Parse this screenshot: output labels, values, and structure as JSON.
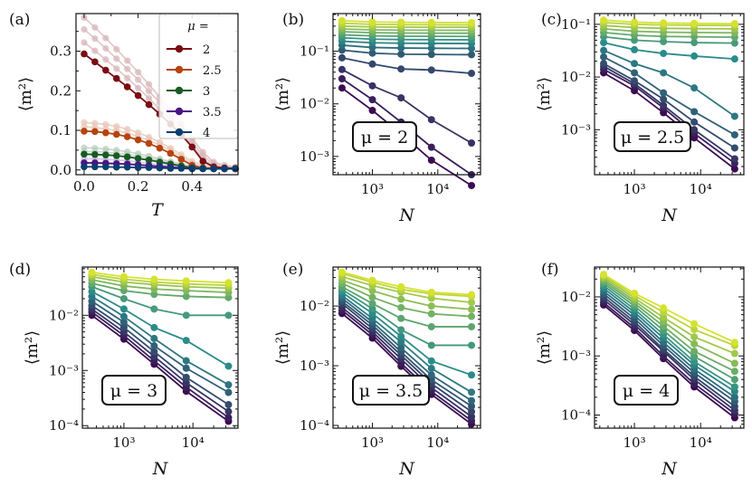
{
  "colors": {
    "mu_series": [
      "#7a0c12",
      "#b5440f",
      "#155c22",
      "#4a1486",
      "#0d3e6e"
    ],
    "N_gradient_start": "#3d0b52",
    "N_gradient_mid": "#2a8c8a",
    "N_gradient_end": "#d5e22f"
  },
  "chart_data": [
    {
      "panel_label": "(a)",
      "type": "line",
      "xlabel": "T",
      "ylabel": "⟨m²⟩",
      "xlim": [
        -0.03,
        0.57
      ],
      "ylim": [
        -0.012,
        0.395
      ],
      "xticks": [
        0.0,
        0.2,
        0.4
      ],
      "xtick_labels": [
        "0.0",
        "0.2",
        "0.4"
      ],
      "yticks": [
        0.0,
        0.1,
        0.2,
        0.3
      ],
      "ytick_labels": [
        "0.0",
        "0.1",
        "0.2",
        "0.3"
      ],
      "legend_title": "μ =",
      "legend_position": "top-right",
      "x": [
        0.0,
        0.04,
        0.08,
        0.12,
        0.16,
        0.2,
        0.24,
        0.28,
        0.32,
        0.36,
        0.4,
        0.44,
        0.48,
        0.52,
        0.56
      ],
      "series": [
        {
          "name": "2",
          "values": [
            0.293,
            0.273,
            0.252,
            0.231,
            0.21,
            0.188,
            0.165,
            0.141,
            0.116,
            0.089,
            0.058,
            0.022,
            0.008,
            0.005,
            0.004
          ]
        },
        {
          "name": "2.5",
          "values": [
            0.098,
            0.097,
            0.094,
            0.09,
            0.084,
            0.076,
            0.067,
            0.055,
            0.042,
            0.027,
            0.012,
            0.005,
            0.004,
            0.003,
            0.003
          ]
        },
        {
          "name": "3",
          "values": [
            0.04,
            0.039,
            0.038,
            0.036,
            0.033,
            0.029,
            0.025,
            0.02,
            0.015,
            0.01,
            0.006,
            0.004,
            0.003,
            0.003,
            0.003
          ]
        },
        {
          "name": "3.5",
          "values": [
            0.018,
            0.018,
            0.017,
            0.016,
            0.015,
            0.013,
            0.011,
            0.009,
            0.007,
            0.005,
            0.004,
            0.003,
            0.003,
            0.003,
            0.003
          ]
        },
        {
          "name": "4",
          "values": [
            0.008,
            0.008,
            0.008,
            0.007,
            0.007,
            0.006,
            0.006,
            0.005,
            0.004,
            0.004,
            0.003,
            0.003,
            0.003,
            0.003,
            0.003
          ]
        }
      ],
      "faint_series": [
        {
          "group": "2",
          "values": [
            0.385,
            0.36,
            0.333,
            0.305,
            0.276,
            0.247,
            0.216,
            0.184,
            0.151,
            0.116,
            0.08,
            0.045,
            0.02,
            0.012,
            0.008
          ]
        },
        {
          "group": "2",
          "values": [
            0.355,
            0.332,
            0.307,
            0.281,
            0.255,
            0.228,
            0.199,
            0.17,
            0.139,
            0.106,
            0.072,
            0.036,
            0.015,
            0.009,
            0.006
          ]
        },
        {
          "group": "2",
          "values": [
            0.322,
            0.301,
            0.279,
            0.256,
            0.232,
            0.207,
            0.181,
            0.154,
            0.126,
            0.096,
            0.064,
            0.028,
            0.011,
            0.007,
            0.005
          ]
        },
        {
          "group": "2.5",
          "values": [
            0.12,
            0.118,
            0.115,
            0.11,
            0.103,
            0.094,
            0.083,
            0.07,
            0.055,
            0.039,
            0.022,
            0.012,
            0.008,
            0.007,
            0.006
          ]
        },
        {
          "group": "2.5",
          "values": [
            0.109,
            0.107,
            0.104,
            0.1,
            0.093,
            0.085,
            0.075,
            0.063,
            0.049,
            0.033,
            0.017,
            0.008,
            0.006,
            0.005,
            0.004
          ]
        },
        {
          "group": "3",
          "values": [
            0.056,
            0.055,
            0.053,
            0.05,
            0.046,
            0.041,
            0.035,
            0.028,
            0.021,
            0.015,
            0.01,
            0.007,
            0.006,
            0.005,
            0.005
          ]
        },
        {
          "group": "3",
          "values": [
            0.047,
            0.046,
            0.045,
            0.042,
            0.039,
            0.035,
            0.03,
            0.024,
            0.018,
            0.012,
            0.008,
            0.005,
            0.004,
            0.004,
            0.004
          ]
        },
        {
          "group": "3.5",
          "values": [
            0.028,
            0.028,
            0.027,
            0.025,
            0.023,
            0.02,
            0.017,
            0.014,
            0.011,
            0.008,
            0.006,
            0.005,
            0.004,
            0.004,
            0.004
          ]
        },
        {
          "group": "4",
          "values": [
            0.016,
            0.016,
            0.015,
            0.014,
            0.013,
            0.012,
            0.01,
            0.009,
            0.007,
            0.006,
            0.005,
            0.004,
            0.004,
            0.004,
            0.004
          ]
        }
      ]
    },
    {
      "panel_label": "(b)",
      "type": "line",
      "scale": "log-log",
      "mu_label": "μ = 2",
      "xlabel": "N",
      "ylabel": "⟨m²⟩",
      "x": [
        343,
        1000,
        2744,
        8000,
        32768
      ],
      "xlim": [
        250,
        45000
      ],
      "ylim": [
        0.00045,
        0.52
      ],
      "xticks": [
        1000,
        10000
      ],
      "xtick_labels": [
        "10³",
        "10⁴"
      ],
      "yticks": [
        0.001,
        0.01,
        0.1
      ],
      "ytick_labels": [
        "10⁻³",
        "10⁻²",
        "10⁻¹"
      ],
      "series": [
        {
          "values": [
            0.02,
            0.0075,
            0.0027,
            0.00085,
            0.00028
          ]
        },
        {
          "values": [
            0.03,
            0.012,
            0.0045,
            0.0015,
            0.00045
          ]
        },
        {
          "values": [
            0.045,
            0.022,
            0.013,
            0.005,
            0.0018
          ]
        },
        {
          "values": [
            0.075,
            0.057,
            0.046,
            0.044,
            0.038
          ]
        },
        {
          "values": [
            0.105,
            0.092,
            0.088,
            0.087,
            0.086
          ]
        },
        {
          "values": [
            0.13,
            0.118,
            0.115,
            0.114,
            0.113
          ]
        },
        {
          "values": [
            0.155,
            0.145,
            0.142,
            0.141,
            0.14
          ]
        },
        {
          "values": [
            0.18,
            0.17,
            0.167,
            0.166,
            0.165
          ]
        },
        {
          "values": [
            0.205,
            0.196,
            0.193,
            0.192,
            0.191
          ]
        },
        {
          "values": [
            0.235,
            0.225,
            0.222,
            0.221,
            0.22
          ]
        },
        {
          "values": [
            0.265,
            0.255,
            0.252,
            0.251,
            0.25
          ]
        },
        {
          "values": [
            0.3,
            0.29,
            0.287,
            0.286,
            0.285
          ]
        },
        {
          "values": [
            0.34,
            0.325,
            0.32,
            0.318,
            0.317
          ]
        },
        {
          "values": [
            0.38,
            0.36,
            0.355,
            0.352,
            0.35
          ]
        }
      ]
    },
    {
      "panel_label": "(c)",
      "type": "line",
      "scale": "log-log",
      "mu_label": "μ = 2.5",
      "xlabel": "N",
      "ylabel": "⟨m²⟩",
      "x": [
        343,
        1000,
        2744,
        8000,
        32768
      ],
      "xlim": [
        250,
        45000
      ],
      "ylim": [
        0.00014,
        0.16
      ],
      "xticks": [
        1000,
        10000
      ],
      "xtick_labels": [
        "10³",
        "10⁴"
      ],
      "yticks": [
        0.001,
        0.01,
        0.1
      ],
      "ytick_labels": [
        "10⁻³",
        "10⁻²",
        "10⁻¹"
      ],
      "series": [
        {
          "values": [
            0.012,
            0.0055,
            0.0021,
            0.0007,
            0.00018
          ]
        },
        {
          "values": [
            0.014,
            0.0068,
            0.0026,
            0.00085,
            0.00023
          ]
        },
        {
          "values": [
            0.016,
            0.0075,
            0.0029,
            0.001,
            0.00028
          ]
        },
        {
          "values": [
            0.018,
            0.0085,
            0.0038,
            0.0014,
            0.00045
          ]
        },
        {
          "values": [
            0.024,
            0.012,
            0.005,
            0.0022,
            0.0008
          ]
        },
        {
          "values": [
            0.032,
            0.018,
            0.012,
            0.0062,
            0.0018
          ]
        },
        {
          "values": [
            0.045,
            0.033,
            0.028,
            0.025,
            0.022
          ]
        },
        {
          "values": [
            0.058,
            0.05,
            0.047,
            0.045,
            0.044
          ]
        },
        {
          "values": [
            0.07,
            0.062,
            0.059,
            0.058,
            0.057
          ]
        },
        {
          "values": [
            0.082,
            0.074,
            0.071,
            0.07,
            0.069
          ]
        },
        {
          "values": [
            0.095,
            0.087,
            0.084,
            0.083,
            0.082
          ]
        },
        {
          "values": [
            0.108,
            0.1,
            0.097,
            0.096,
            0.095
          ]
        },
        {
          "values": [
            0.12,
            0.11,
            0.106,
            0.104,
            0.103
          ]
        }
      ]
    },
    {
      "panel_label": "(d)",
      "type": "line",
      "scale": "log-log",
      "mu_label": "μ = 3",
      "xlabel": "N",
      "ylabel": "⟨m²⟩",
      "x": [
        343,
        1000,
        2744,
        8000,
        32768
      ],
      "xlim": [
        250,
        45000
      ],
      "ylim": [
        9e-05,
        0.075
      ],
      "xticks": [
        1000,
        10000
      ],
      "xtick_labels": [
        "10³",
        "10⁴"
      ],
      "yticks": [
        0.0001,
        0.001,
        0.01
      ],
      "ytick_labels": [
        "10⁻⁴",
        "10⁻³",
        "10⁻²"
      ],
      "series": [
        {
          "values": [
            0.01,
            0.0037,
            0.0013,
            0.00042,
            0.00012
          ]
        },
        {
          "values": [
            0.0115,
            0.0043,
            0.0015,
            0.0005,
            0.00014
          ]
        },
        {
          "values": [
            0.013,
            0.005,
            0.0018,
            0.0006,
            0.00018
          ]
        },
        {
          "values": [
            0.015,
            0.006,
            0.0022,
            0.00075,
            0.00024
          ]
        },
        {
          "values": [
            0.018,
            0.0075,
            0.0028,
            0.0011,
            0.0004
          ]
        },
        {
          "values": [
            0.022,
            0.0095,
            0.0038,
            0.0015,
            0.00055
          ]
        },
        {
          "values": [
            0.027,
            0.013,
            0.006,
            0.0035,
            0.0012
          ]
        },
        {
          "values": [
            0.033,
            0.02,
            0.013,
            0.01,
            0.01
          ]
        },
        {
          "values": [
            0.038,
            0.028,
            0.024,
            0.022,
            0.021
          ]
        },
        {
          "values": [
            0.044,
            0.034,
            0.03,
            0.028,
            0.026
          ]
        },
        {
          "values": [
            0.05,
            0.04,
            0.036,
            0.033,
            0.031
          ]
        },
        {
          "values": [
            0.055,
            0.045,
            0.04,
            0.037,
            0.035
          ]
        },
        {
          "values": [
            0.06,
            0.05,
            0.045,
            0.042,
            0.039
          ]
        }
      ]
    },
    {
      "panel_label": "(e)",
      "type": "line",
      "scale": "log-log",
      "mu_label": "μ = 3.5",
      "xlabel": "N",
      "ylabel": "⟨m²⟩",
      "x": [
        343,
        1000,
        2744,
        8000,
        32768
      ],
      "xlim": [
        250,
        45000
      ],
      "ylim": [
        9e-05,
        0.045
      ],
      "xticks": [
        1000,
        10000
      ],
      "xtick_labels": [
        "10³",
        "10⁴"
      ],
      "yticks": [
        0.0001,
        0.001,
        0.01
      ],
      "ytick_labels": [
        "10⁻⁴",
        "10⁻³",
        "10⁻²"
      ],
      "series": [
        {
          "values": [
            0.0075,
            0.0029,
            0.00098,
            0.00033,
            0.000105
          ]
        },
        {
          "values": [
            0.0085,
            0.0033,
            0.0011,
            0.00037,
            0.00012
          ]
        },
        {
          "values": [
            0.0095,
            0.0037,
            0.0013,
            0.00043,
            0.00014
          ]
        },
        {
          "values": [
            0.011,
            0.0042,
            0.0015,
            0.0005,
            0.00017
          ]
        },
        {
          "values": [
            0.012,
            0.0048,
            0.0017,
            0.00058,
            0.00021
          ]
        },
        {
          "values": [
            0.0135,
            0.0054,
            0.002,
            0.0007,
            0.00026
          ]
        },
        {
          "values": [
            0.015,
            0.0062,
            0.0025,
            0.0009,
            0.00036
          ]
        },
        {
          "values": [
            0.017,
            0.0075,
            0.0031,
            0.0012,
            0.0007
          ]
        },
        {
          "values": [
            0.019,
            0.009,
            0.004,
            0.0022,
            0.0022
          ]
        },
        {
          "values": [
            0.021,
            0.011,
            0.0062,
            0.0045,
            0.0045
          ]
        },
        {
          "values": [
            0.024,
            0.014,
            0.0094,
            0.0074,
            0.0067
          ]
        },
        {
          "values": [
            0.027,
            0.018,
            0.013,
            0.01,
            0.0088
          ]
        },
        {
          "values": [
            0.031,
            0.022,
            0.017,
            0.0135,
            0.0115
          ]
        },
        {
          "values": [
            0.035,
            0.025,
            0.019,
            0.016,
            0.0145
          ]
        },
        {
          "values": [
            0.037,
            0.027,
            0.021,
            0.017,
            0.0155
          ]
        }
      ]
    },
    {
      "panel_label": "(f)",
      "type": "line",
      "scale": "log-log",
      "mu_label": "μ = 4",
      "xlabel": "N",
      "ylabel": "⟨m²⟩",
      "x": [
        343,
        1000,
        2744,
        8000,
        32768
      ],
      "xlim": [
        250,
        45000
      ],
      "ylim": [
        6e-05,
        0.032
      ],
      "xticks": [
        1000,
        10000
      ],
      "xtick_labels": [
        "10³",
        "10⁴"
      ],
      "yticks": [
        0.0001,
        0.001,
        0.01
      ],
      "ytick_labels": [
        "10⁻⁴",
        "10⁻³",
        "10⁻²"
      ],
      "series": [
        {
          "values": [
            0.0073,
            0.0027,
            0.0009,
            0.0003,
            9e-05
          ]
        },
        {
          "values": [
            0.008,
            0.003,
            0.001,
            0.00034,
            0.000105
          ]
        },
        {
          "values": [
            0.009,
            0.0034,
            0.0012,
            0.0004,
            0.00012
          ]
        },
        {
          "values": [
            0.01,
            0.0038,
            0.0013,
            0.00045,
            0.00014
          ]
        },
        {
          "values": [
            0.0112,
            0.0043,
            0.0015,
            0.00052,
            0.00017
          ]
        },
        {
          "values": [
            0.0125,
            0.0049,
            0.0017,
            0.0006,
            0.0002
          ]
        },
        {
          "values": [
            0.014,
            0.0055,
            0.002,
            0.0007,
            0.00025
          ]
        },
        {
          "values": [
            0.0155,
            0.0062,
            0.0023,
            0.0008,
            0.0003
          ]
        },
        {
          "values": [
            0.017,
            0.007,
            0.0027,
            0.00098,
            0.0004
          ]
        },
        {
          "values": [
            0.0185,
            0.0078,
            0.0032,
            0.0012,
            0.00055
          ]
        },
        {
          "values": [
            0.02,
            0.0086,
            0.0038,
            0.0016,
            0.00075
          ]
        },
        {
          "values": [
            0.0215,
            0.0095,
            0.0045,
            0.0021,
            0.0011
          ]
        },
        {
          "values": [
            0.023,
            0.0105,
            0.0055,
            0.0028,
            0.0015
          ]
        },
        {
          "values": [
            0.024,
            0.0115,
            0.0065,
            0.0035,
            0.0017
          ]
        }
      ]
    }
  ]
}
